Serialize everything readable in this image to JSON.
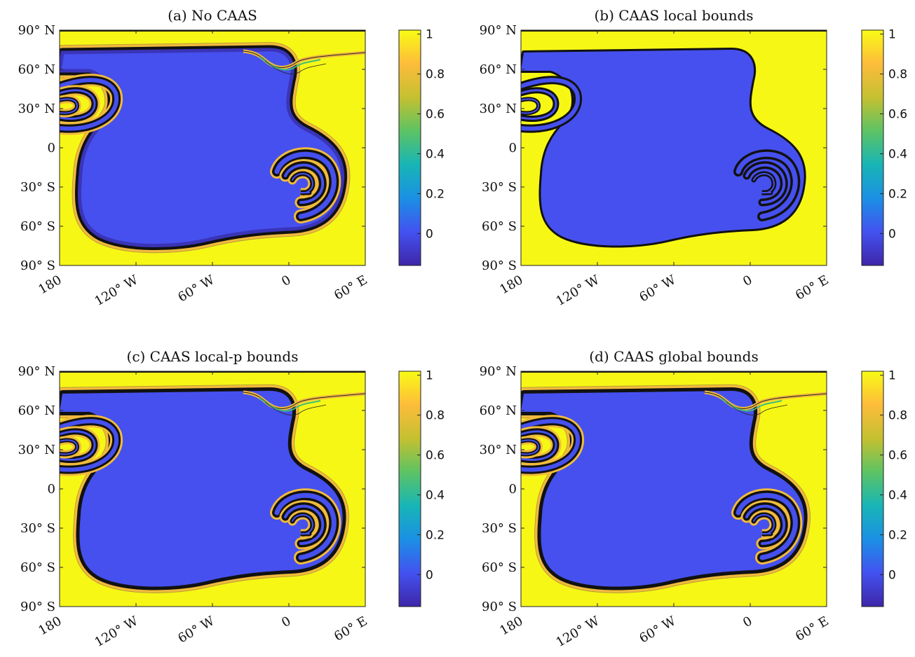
{
  "colors": {
    "blue": "#4650ee",
    "yellow": "#f7f716",
    "orange": "#f1ba3c",
    "green": "#3fbb7c",
    "colormap": [
      "#3e26a8",
      "#4352f0",
      "#1b90e4",
      "#18b5b6",
      "#5dc364",
      "#c5c030",
      "#fdbc3b",
      "#f9fb15"
    ]
  },
  "chart_data": [
    {
      "type": "heatmap",
      "title": "(a) No CAAS",
      "xlabel": "",
      "ylabel": "",
      "xticks": [
        "180",
        "120° W",
        "60° W",
        "0",
        "60° E"
      ],
      "yticks": [
        "90° N",
        "60° N",
        "30° N",
        "0",
        "30° S",
        "60° S",
        "90° S"
      ],
      "xlim": [
        -180,
        60
      ],
      "ylim": [
        -90,
        90
      ],
      "variant": "nocaas",
      "colorbar": {
        "ticks": [
          "1",
          "0.8",
          "0.6",
          "0.4",
          "0.2",
          "0"
        ],
        "values": [
          1,
          0.8,
          0.6,
          0.4,
          0.2,
          0
        ],
        "range": [
          -0.16,
          1.02
        ]
      }
    },
    {
      "type": "heatmap",
      "title": "(b) CAAS local bounds",
      "xlabel": "",
      "ylabel": "",
      "xticks": [
        "180",
        "120° W",
        "60° W",
        "0",
        "60° E"
      ],
      "yticks": [
        "90° N",
        "60° N",
        "30° N",
        "0",
        "30° S",
        "60° S",
        "90° S"
      ],
      "xlim": [
        -180,
        60
      ],
      "ylim": [
        -90,
        90
      ],
      "variant": "local",
      "colorbar": {
        "ticks": [
          "1",
          "0.8",
          "0.6",
          "0.4",
          "0.2",
          "0"
        ],
        "values": [
          1,
          0.8,
          0.6,
          0.4,
          0.2,
          0
        ],
        "range": [
          -0.16,
          1.02
        ]
      }
    },
    {
      "type": "heatmap",
      "title": "(c) CAAS local-p bounds",
      "xlabel": "",
      "ylabel": "",
      "xticks": [
        "180",
        "120° W",
        "60° W",
        "0",
        "60° E"
      ],
      "yticks": [
        "90° N",
        "60° N",
        "30° N",
        "0",
        "30° S",
        "60° S",
        "90° S"
      ],
      "xlim": [
        -180,
        60
      ],
      "ylim": [
        -90,
        90
      ],
      "variant": "localp",
      "colorbar": {
        "ticks": [
          "1",
          "0.8",
          "0.6",
          "0.4",
          "0.2",
          "0"
        ],
        "values": [
          1,
          0.8,
          0.6,
          0.4,
          0.2,
          0
        ],
        "range": [
          -0.16,
          1.02
        ]
      }
    },
    {
      "type": "heatmap",
      "title": "(d) CAAS global bounds",
      "xlabel": "",
      "ylabel": "",
      "xticks": [
        "180",
        "120° W",
        "60° W",
        "0",
        "60° E"
      ],
      "yticks": [
        "90° N",
        "60° N",
        "30° N",
        "0",
        "30° S",
        "60° S",
        "90° S"
      ],
      "xlim": [
        -180,
        60
      ],
      "ylim": [
        -90,
        90
      ],
      "variant": "global",
      "colorbar": {
        "ticks": [
          "1",
          "0.8",
          "0.6",
          "0.4",
          "0.2",
          "0"
        ],
        "values": [
          1,
          0.8,
          0.6,
          0.4,
          0.2,
          0
        ],
        "range": [
          -0.16,
          1.02
        ]
      }
    }
  ]
}
